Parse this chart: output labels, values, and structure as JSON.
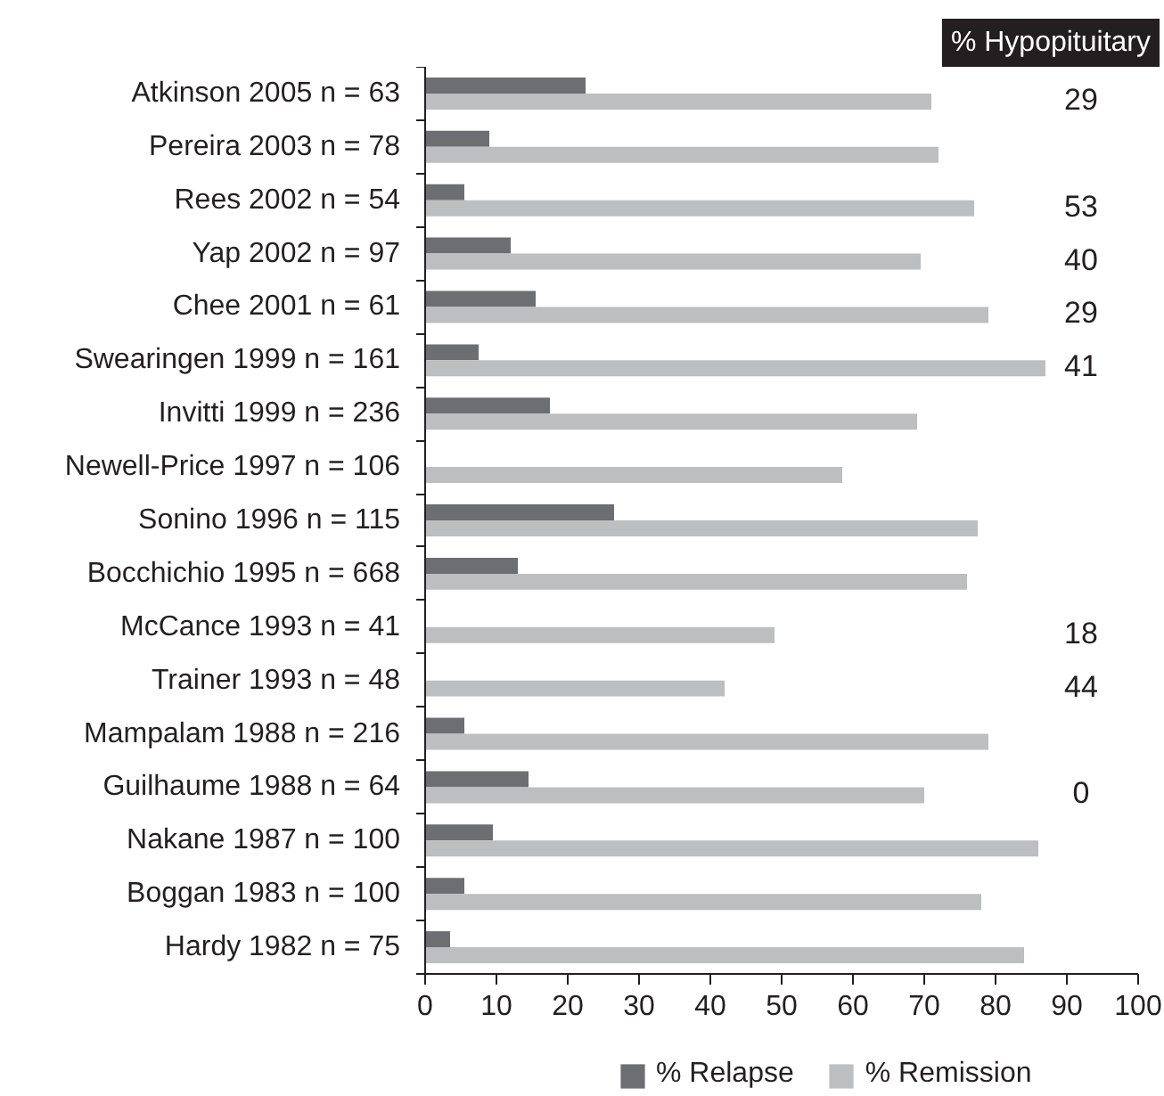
{
  "chart_data": [
    {
      "type": "bar",
      "orientation": "horizontal",
      "categories": [
        "Atkinson 2005 n = 63",
        "Pereira 2003 n = 78",
        "Rees 2002 n = 54",
        "Yap 2002 n = 97",
        "Chee 2001 n = 61",
        "Swearingen 1999 n = 161",
        "Invitti 1999 n = 236",
        "Newell-Price 1997 n = 106",
        "Sonino 1996 n = 115",
        "Bocchichio 1995 n = 668",
        "McCance 1993 n = 41",
        "Trainer 1993 n = 48",
        "Mampalam 1988 n = 216",
        "Guilhaume 1988 n = 64",
        "Nakane 1987 n = 100",
        "Boggan 1983 n = 100",
        "Hardy 1982 n = 75"
      ],
      "series": [
        {
          "name": "% Relapse",
          "color": "#6d6e71",
          "values": [
            22.5,
            9,
            5.5,
            12,
            15.5,
            7.5,
            17.5,
            null,
            26.5,
            13,
            null,
            null,
            5.5,
            14.5,
            9.5,
            5.5,
            3.5
          ]
        },
        {
          "name": "% Remission",
          "color": "#bcbec0",
          "values": [
            71,
            72,
            77,
            69.5,
            79,
            87,
            69,
            58.5,
            77.5,
            76,
            49,
            42,
            79,
            70,
            86,
            78,
            84
          ]
        }
      ],
      "xlim": [
        0,
        100
      ],
      "xticks": [
        0,
        10,
        20,
        30,
        40,
        50,
        60,
        70,
        80,
        90,
        100
      ],
      "grid": false,
      "legend": "bottom"
    },
    {
      "type": "other",
      "title": "% Hypopituitary",
      "categories": [
        null,
        null,
        null,
        null,
        null,
        null,
        null,
        null,
        null,
        null,
        null,
        null,
        null,
        null,
        null,
        null,
        null
      ],
      "values": [
        29,
        null,
        53,
        40,
        29,
        41,
        null,
        null,
        null,
        null,
        18,
        44,
        null,
        0,
        null,
        null,
        null
      ],
      "data_labels": true
    }
  ]
}
